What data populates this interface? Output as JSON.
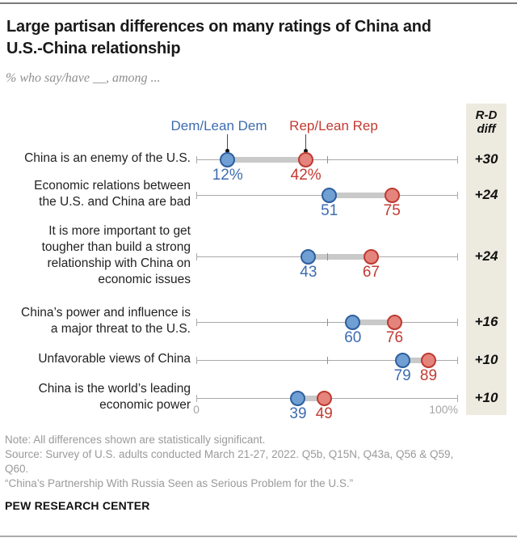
{
  "header": {
    "title": "Large partisan differences on many ratings of China and U.S.-China relationship",
    "subtitle": "% who say/have __, among ..."
  },
  "legend": {
    "dem": "Dem/Lean Dem",
    "rep": "Rep/Lean Rep"
  },
  "chart_data": {
    "type": "scatter",
    "subtype": "dumbbell-dot-plot",
    "title": "Large partisan differences on many ratings of China and U.S.-China relationship",
    "categories": [
      [
        "China is an enemy of the U.S."
      ],
      [
        "Economic relations between",
        "the U.S. and China are bad"
      ],
      [
        "It is more important to get",
        "tougher than build a strong",
        "relationship with China on",
        "economic issues"
      ],
      [
        "China’s power and influence is",
        "a major threat to the U.S."
      ],
      [
        "Unfavorable views of China"
      ],
      [
        "China is the world’s leading",
        "economic power"
      ]
    ],
    "series": [
      {
        "name": "Dem/Lean Dem",
        "values": [
          12,
          51,
          43,
          60,
          79,
          39
        ],
        "value_labels": [
          "12%",
          "51",
          "43",
          "60",
          "79",
          "39"
        ],
        "fill": "#6f9fd3",
        "stroke": "#2e5e9e",
        "text_color": "#3d6cb0"
      },
      {
        "name": "Rep/Lean Rep",
        "values": [
          42,
          75,
          67,
          76,
          89,
          49
        ],
        "value_labels": [
          "42%",
          "75",
          "67",
          "76",
          "89",
          "49"
        ],
        "fill": "#e5847c",
        "stroke": "#bc3a31",
        "text_color": "#c23b33"
      }
    ],
    "diff_column": {
      "header_lines": [
        "R-D",
        "diff"
      ],
      "values": [
        "+30",
        "+24",
        "+24",
        "+16",
        "+10",
        "+10"
      ]
    },
    "xlim": [
      0,
      100
    ],
    "axis_labels": {
      "min": "0",
      "max": "100%"
    },
    "grid": false,
    "legend_position": "top"
  },
  "colors": {
    "connector": "#c9c9c9",
    "axis": "#a9a9a9",
    "mid_tick": "#8f8f8f",
    "panel_bg": "#edebe0",
    "callout": "#4a4a4a",
    "note_text": "#9a9a9a",
    "title_text": "#1a1a1a"
  },
  "footer": {
    "lines": [
      "Note: All differences shown are statistically significant.",
      "Source: Survey of U.S. adults conducted March 21-27, 2022. Q5b, Q15N, Q43a, Q56 & Q59,",
      "Q60.",
      "“China’s Partnership With Russia Seen as Serious Problem for the U.S.”"
    ],
    "brand": "PEW RESEARCH CENTER"
  }
}
